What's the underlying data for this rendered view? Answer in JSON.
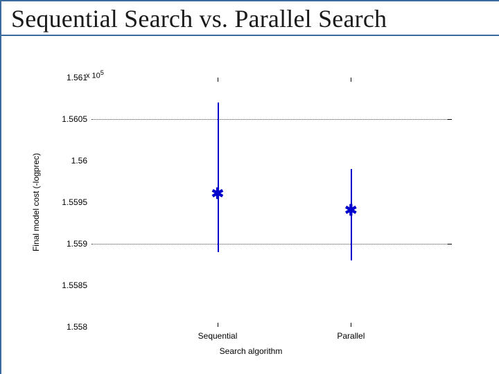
{
  "title": "Sequential Search vs. Parallel Search",
  "chart": {
    "type": "errorbar",
    "y_axis": {
      "title": "Final model cost (-logprec)",
      "exponent_label": "x 10^5",
      "min": 1.558,
      "max": 1.561,
      "ticks": [
        {
          "value": 1.558,
          "label": "1.558"
        },
        {
          "value": 1.5585,
          "label": "1.5585"
        },
        {
          "value": 1.559,
          "label": "1.559"
        },
        {
          "value": 1.5595,
          "label": "1.5595"
        },
        {
          "value": 1.56,
          "label": "1.56"
        },
        {
          "value": 1.5605,
          "label": "1.5605"
        },
        {
          "value": 1.561,
          "label": "1.561"
        }
      ],
      "gridline_at": [
        1.559,
        1.5605
      ]
    },
    "x_axis": {
      "title": "Search algorithm",
      "categories": [
        {
          "key": "sequential",
          "label": "Sequential",
          "position": 0.35
        },
        {
          "key": "parallel",
          "label": "Parallel",
          "position": 0.72
        }
      ],
      "xtick_top_at": [
        0.35,
        0.72
      ]
    },
    "series_color": "#0000cc",
    "marker": "✱",
    "marker_fontsize": 22,
    "line_width": 2,
    "data": {
      "sequential": {
        "low": 1.5589,
        "mid": 1.5596,
        "high": 1.5607
      },
      "parallel": {
        "low": 1.5588,
        "mid": 1.5594,
        "high": 1.5599
      }
    },
    "background_color": "#ffffff",
    "grid_color": "#444444"
  }
}
